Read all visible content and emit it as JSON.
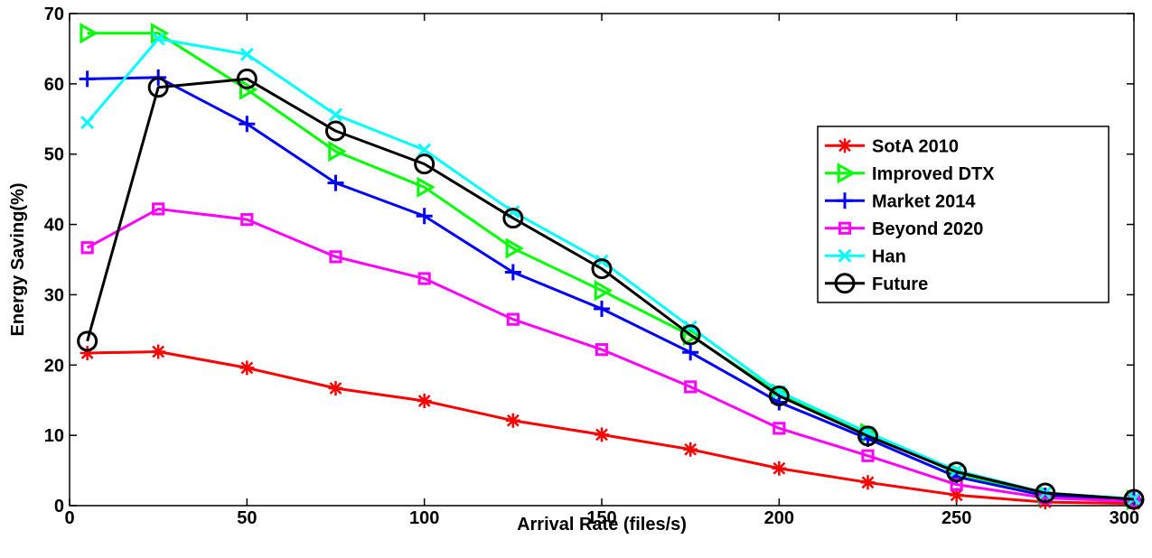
{
  "chart_data": {
    "type": "line",
    "xlabel": "Arrival Rate (files/s)",
    "ylabel": "Energy Saving(%)",
    "xlim": [
      0,
      300
    ],
    "ylim": [
      0,
      70
    ],
    "xticks": [
      0,
      50,
      100,
      150,
      200,
      250,
      300
    ],
    "yticks": [
      0,
      10,
      20,
      30,
      40,
      50,
      60,
      70
    ],
    "grid": false,
    "legend_position": "right",
    "x": [
      5,
      25,
      50,
      75,
      100,
      125,
      150,
      175,
      200,
      225,
      250,
      275,
      300
    ],
    "series": [
      {
        "name": "SotA 2010",
        "color": "#ff0000",
        "marker": "asterisk",
        "values": [
          21.7,
          21.9,
          19.6,
          16.7,
          14.9,
          12.1,
          10.1,
          8.0,
          5.3,
          3.3,
          1.5,
          0.5,
          0.3
        ]
      },
      {
        "name": "Improved DTX",
        "color": "#00ff00",
        "marker": "triangle-right",
        "values": [
          67.2,
          67.2,
          59.2,
          50.4,
          45.3,
          36.6,
          30.6,
          24.2,
          15.9,
          10.3,
          4.6,
          1.5,
          0.8
        ]
      },
      {
        "name": "Market 2014",
        "color": "#0000ff",
        "marker": "plus",
        "values": [
          60.7,
          60.9,
          54.3,
          45.9,
          41.2,
          33.2,
          28.0,
          21.8,
          14.7,
          9.5,
          4.1,
          1.4,
          0.8
        ]
      },
      {
        "name": "Beyond 2020",
        "color": "#ff00ff",
        "marker": "square",
        "values": [
          36.7,
          42.2,
          40.7,
          35.4,
          32.3,
          26.5,
          22.2,
          16.9,
          11.0,
          7.1,
          3.0,
          1.1,
          0.6
        ]
      },
      {
        "name": "Han",
        "color": "#00ffff",
        "marker": "x",
        "values": [
          54.5,
          66.4,
          64.2,
          55.6,
          50.6,
          41.8,
          34.8,
          25.4,
          16.2,
          10.4,
          5.0,
          1.8,
          1.0
        ]
      },
      {
        "name": "Future",
        "color": "#000000",
        "marker": "circle",
        "values": [
          23.4,
          59.5,
          60.7,
          53.3,
          48.6,
          40.9,
          33.7,
          24.3,
          15.6,
          9.9,
          4.8,
          1.8,
          0.9
        ]
      }
    ]
  }
}
